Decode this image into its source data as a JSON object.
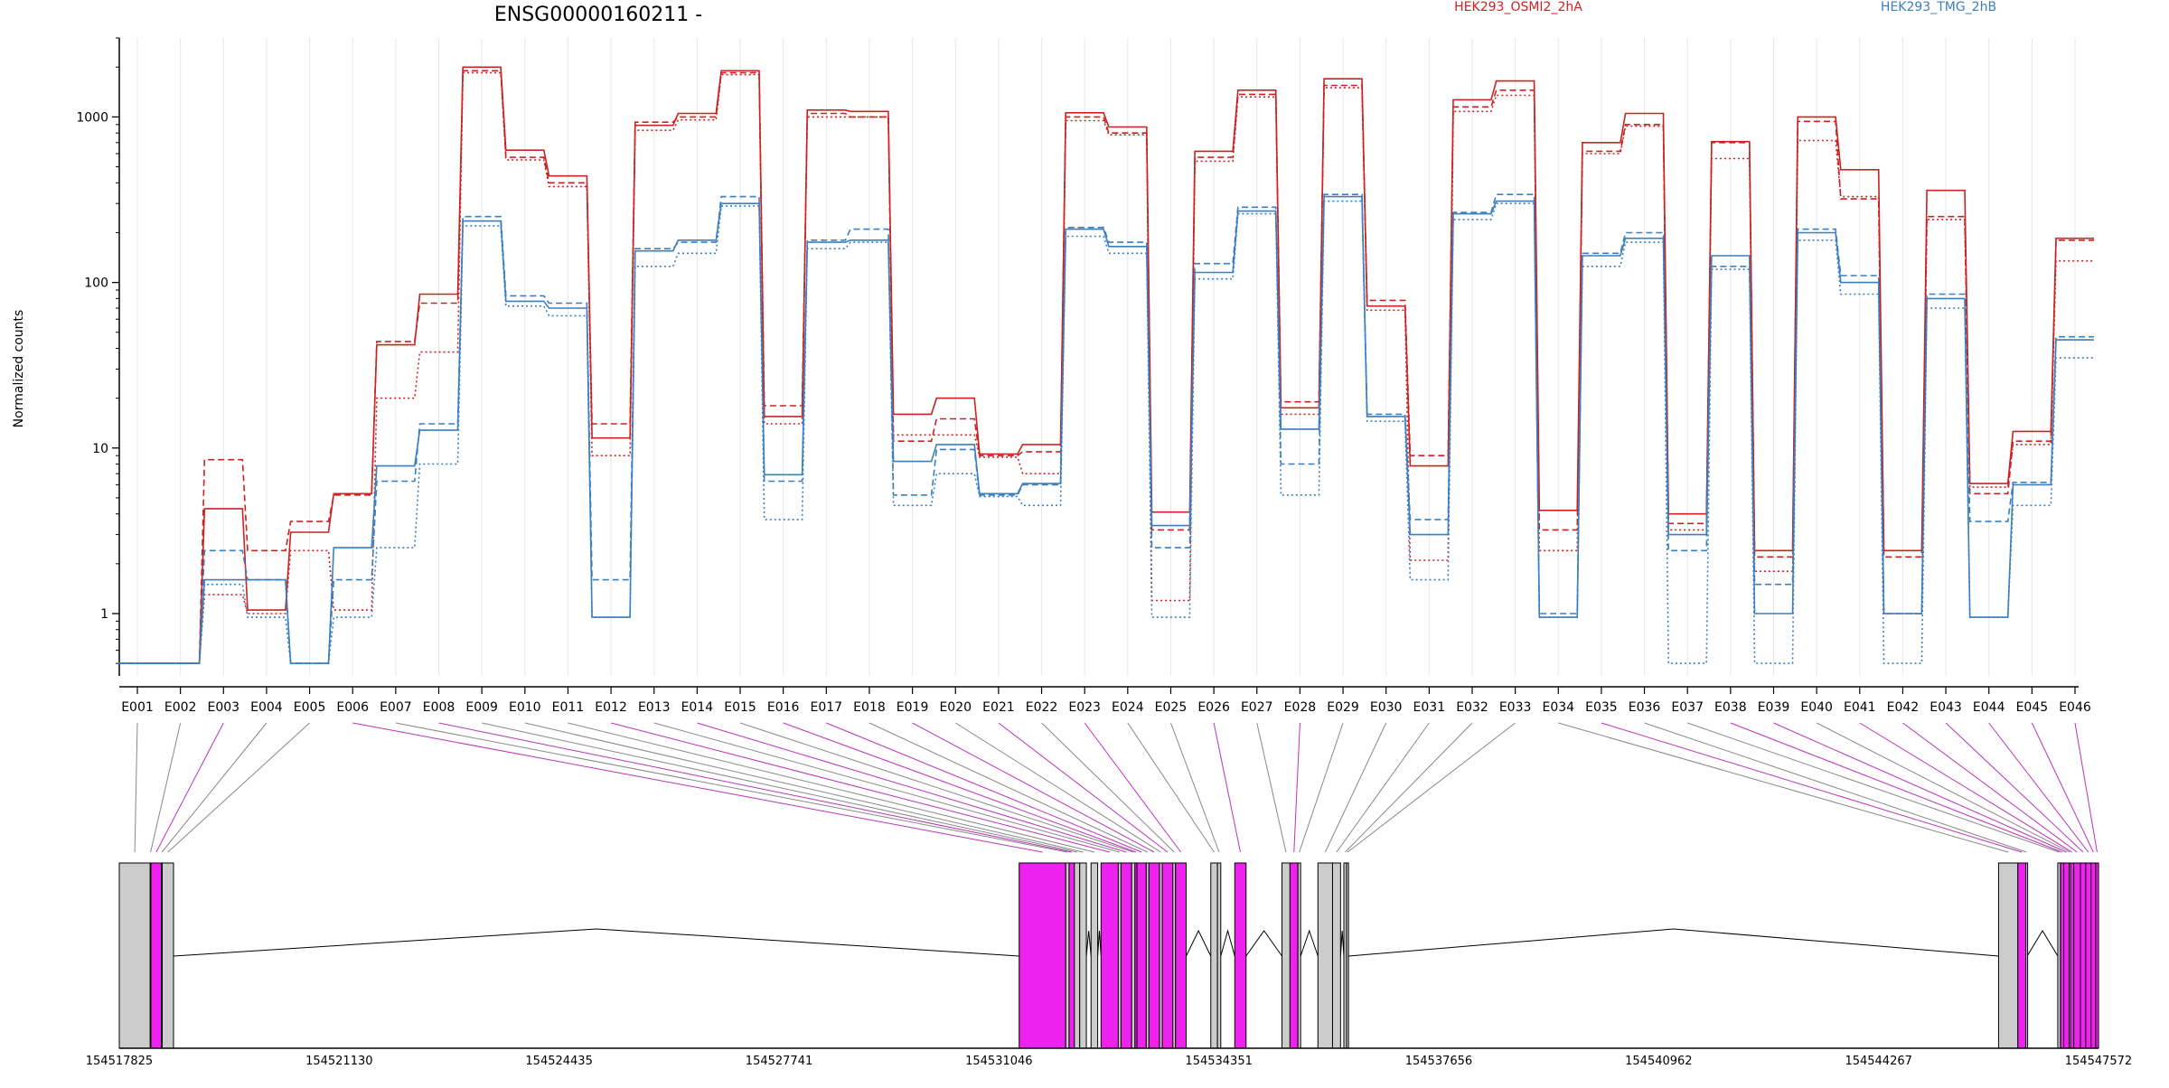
{
  "chart_data": {
    "type": "line",
    "title": "ENSG00000160211 -",
    "ylabel": "Normalized counts",
    "yscale": "log",
    "ylim": [
      0.42,
      3000
    ],
    "ytick_labels": [
      "1",
      "10",
      "100",
      "1000"
    ],
    "categories": [
      "E001",
      "E002",
      "E003",
      "E004",
      "E005",
      "E006",
      "E007",
      "E008",
      "E009",
      "E010",
      "E011",
      "E012",
      "E013",
      "E014",
      "E015",
      "E016",
      "E017",
      "E018",
      "E019",
      "E020",
      "E021",
      "E022",
      "E023",
      "E024",
      "E025",
      "E026",
      "E027",
      "E028",
      "E029",
      "E030",
      "E031",
      "E032",
      "E033",
      "E034",
      "E035",
      "E036",
      "E037",
      "E038",
      "E039",
      "E040",
      "E041",
      "E042",
      "E043",
      "E044",
      "E045",
      "E046"
    ],
    "legend": [
      {
        "name": "HEK293_OSMI2_2hA",
        "color": "#cc2222"
      },
      {
        "name": "HEK293_TMG_2hB",
        "color": "#3a7fc0"
      }
    ],
    "series": [
      {
        "name": "HEK293_OSMI2_2hA",
        "color": "#cc2222",
        "style": "solid",
        "values": [
          0.5,
          0.5,
          4.3,
          1.05,
          3.1,
          5.3,
          42,
          85,
          2000,
          630,
          440,
          11.5,
          890,
          1050,
          1900,
          15.5,
          1100,
          1080,
          16,
          20,
          9.2,
          10.5,
          1060,
          870,
          4.1,
          620,
          1450,
          17.5,
          1700,
          72,
          7.8,
          1270,
          1650,
          4.2,
          700,
          1050,
          4.0,
          710,
          2.4,
          1000,
          480,
          2.4,
          360,
          6.1,
          12.6,
          185
        ]
      },
      {
        "name": "HEK293_OSMI2_2hA",
        "color": "#cc2222",
        "style": "dashed",
        "values": [
          0.5,
          0.5,
          8.5,
          2.4,
          3.6,
          5.2,
          44,
          75,
          1900,
          570,
          400,
          14,
          930,
          1000,
          1850,
          18,
          1050,
          1000,
          11,
          15,
          9.0,
          9.5,
          1000,
          800,
          3.2,
          570,
          1370,
          19,
          1550,
          78,
          9,
          1150,
          1450,
          3.2,
          620,
          900,
          3.5,
          700,
          2.2,
          940,
          320,
          2.2,
          250,
          5.3,
          11,
          180
        ]
      },
      {
        "name": "HEK293_OSMI2_2hA",
        "color": "#cc2222",
        "style": "dotted",
        "values": [
          0.5,
          0.5,
          1.3,
          1.0,
          2.4,
          1.05,
          20,
          38,
          1850,
          550,
          380,
          9,
          830,
          960,
          1800,
          14,
          1000,
          1000,
          12,
          12,
          8.8,
          7,
          950,
          780,
          1.2,
          540,
          1320,
          16,
          1500,
          68,
          2.1,
          1080,
          1350,
          2.4,
          600,
          880,
          3.2,
          560,
          1.8,
          720,
          330,
          1.0,
          240,
          5.8,
          10.5,
          135
        ]
      },
      {
        "name": "HEK293_TMG_2hB",
        "color": "#3a7fc0",
        "style": "solid",
        "values": [
          0.5,
          0.5,
          1.6,
          1.6,
          0.5,
          2.5,
          7.8,
          12.8,
          235,
          77,
          70,
          0.95,
          155,
          180,
          300,
          6.9,
          175,
          180,
          8.3,
          10.5,
          5.3,
          6.1,
          210,
          165,
          3.4,
          115,
          270,
          13,
          330,
          15.5,
          3.0,
          260,
          310,
          0.95,
          145,
          185,
          3.0,
          145,
          1.0,
          200,
          100,
          1.0,
          80,
          0.95,
          6.0,
          45
        ]
      },
      {
        "name": "HEK293_TMG_2hB",
        "color": "#3a7fc0",
        "style": "dashed",
        "values": [
          0.5,
          0.5,
          2.4,
          1.6,
          0.5,
          1.6,
          6.3,
          14,
          250,
          83,
          75,
          1.6,
          160,
          175,
          330,
          6.3,
          180,
          210,
          5.2,
          9.8,
          5.2,
          6.0,
          215,
          175,
          2.5,
          130,
          285,
          8,
          340,
          16,
          3.7,
          265,
          340,
          1.0,
          150,
          200,
          2.4,
          125,
          1.5,
          210,
          110,
          1.0,
          85,
          3.6,
          6.2,
          47
        ]
      },
      {
        "name": "HEK293_TMG_2hB",
        "color": "#3a7fc0",
        "style": "dotted",
        "values": [
          0.5,
          0.5,
          1.5,
          0.95,
          0.5,
          0.95,
          2.5,
          8,
          220,
          72,
          63,
          0.95,
          125,
          150,
          290,
          3.7,
          160,
          175,
          4.5,
          7.0,
          5.1,
          4.5,
          190,
          150,
          0.95,
          105,
          260,
          5.2,
          310,
          14.5,
          1.6,
          240,
          300,
          0.95,
          125,
          175,
          0.5,
          120,
          0.5,
          180,
          85,
          0.5,
          70,
          0.95,
          4.5,
          35
        ]
      }
    ],
    "gene_model": {
      "coordinate_labels": [
        "154517825",
        "154521130",
        "154524435",
        "154527741",
        "154531046",
        "154534351",
        "154537656",
        "154540962",
        "154544267",
        "154547572"
      ],
      "coordinate_values": [
        154517825,
        154521130,
        154524435,
        154527741,
        154531046,
        154534351,
        154537656,
        154540962,
        154544267,
        154547572
      ],
      "exon_colors": {
        "normal": "#cccccc",
        "highlight": "#ee22ee"
      },
      "exons": [
        {
          "id": "E001",
          "start": 154517825,
          "end": 154518290,
          "highlight": false
        },
        {
          "id": "E002",
          "start": 154518290,
          "end": 154518300,
          "highlight": false
        },
        {
          "id": "E003",
          "start": 154518300,
          "end": 154518460,
          "highlight": true
        },
        {
          "id": "E004",
          "start": 154518460,
          "end": 154518470,
          "highlight": false
        },
        {
          "id": "E005",
          "start": 154518470,
          "end": 154518640,
          "highlight": false
        },
        {
          "id": "E006",
          "start": 154531350,
          "end": 154532050,
          "highlight": true
        },
        {
          "id": "E007",
          "start": 154532050,
          "end": 154532100,
          "highlight": false
        },
        {
          "id": "E008",
          "start": 154532100,
          "end": 154532180,
          "highlight": true
        },
        {
          "id": "E009",
          "start": 154532180,
          "end": 154532260,
          "highlight": false
        },
        {
          "id": "E010",
          "start": 154532260,
          "end": 154532360,
          "highlight": false
        },
        {
          "id": "E011",
          "start": 154532430,
          "end": 154532530,
          "highlight": false
        },
        {
          "id": "E012",
          "start": 154532580,
          "end": 154532840,
          "highlight": true
        },
        {
          "id": "E013",
          "start": 154532840,
          "end": 154532880,
          "highlight": false
        },
        {
          "id": "E014",
          "start": 154532880,
          "end": 154533040,
          "highlight": true
        },
        {
          "id": "E015",
          "start": 154533040,
          "end": 154533090,
          "highlight": false
        },
        {
          "id": "E016",
          "start": 154533090,
          "end": 154533120,
          "highlight": true
        },
        {
          "id": "E017",
          "start": 154533120,
          "end": 154533260,
          "highlight": true
        },
        {
          "id": "E018",
          "start": 154533260,
          "end": 154533300,
          "highlight": false
        },
        {
          "id": "E019",
          "start": 154533300,
          "end": 154533460,
          "highlight": true
        },
        {
          "id": "E020",
          "start": 154533460,
          "end": 154533500,
          "highlight": false
        },
        {
          "id": "E021",
          "start": 154533500,
          "end": 154533660,
          "highlight": true
        },
        {
          "id": "E022",
          "start": 154533660,
          "end": 154533700,
          "highlight": false
        },
        {
          "id": "E023",
          "start": 154533700,
          "end": 154533860,
          "highlight": true
        },
        {
          "id": "E024",
          "start": 154534230,
          "end": 154534330,
          "highlight": false
        },
        {
          "id": "E025",
          "start": 154534330,
          "end": 154534380,
          "highlight": false
        },
        {
          "id": "E026",
          "start": 154534590,
          "end": 154534760,
          "highlight": true
        },
        {
          "id": "E027",
          "start": 154535300,
          "end": 154535420,
          "highlight": false
        },
        {
          "id": "E028",
          "start": 154535420,
          "end": 154535540,
          "highlight": true
        },
        {
          "id": "E029",
          "start": 154535540,
          "end": 154535580,
          "highlight": false
        },
        {
          "id": "E030",
          "start": 154535840,
          "end": 154536060,
          "highlight": false
        },
        {
          "id": "E031",
          "start": 154536060,
          "end": 154536180,
          "highlight": false
        },
        {
          "id": "E032",
          "start": 154536230,
          "end": 154536270,
          "highlight": false
        },
        {
          "id": "E033",
          "start": 154536270,
          "end": 154536300,
          "highlight": false
        },
        {
          "id": "E034",
          "start": 154546070,
          "end": 154546360,
          "highlight": false
        },
        {
          "id": "E035",
          "start": 154546360,
          "end": 154546480,
          "highlight": true
        },
        {
          "id": "E036",
          "start": 154546480,
          "end": 154546500,
          "highlight": false
        },
        {
          "id": "E037",
          "start": 154546960,
          "end": 154547000,
          "highlight": false
        },
        {
          "id": "E038",
          "start": 154547000,
          "end": 154547050,
          "highlight": true
        },
        {
          "id": "E039",
          "start": 154547050,
          "end": 154547130,
          "highlight": true
        },
        {
          "id": "E040",
          "start": 154547130,
          "end": 154547150,
          "highlight": false
        },
        {
          "id": "E041",
          "start": 154547150,
          "end": 154547200,
          "highlight": true
        },
        {
          "id": "E042",
          "start": 154547200,
          "end": 154547300,
          "highlight": true
        },
        {
          "id": "E043",
          "start": 154547300,
          "end": 154547380,
          "highlight": true
        },
        {
          "id": "E044",
          "start": 154547380,
          "end": 154547460,
          "highlight": true
        },
        {
          "id": "E045",
          "start": 154547460,
          "end": 154547530,
          "highlight": true
        },
        {
          "id": "E046",
          "start": 154547530,
          "end": 154547572,
          "highlight": true
        }
      ]
    }
  }
}
